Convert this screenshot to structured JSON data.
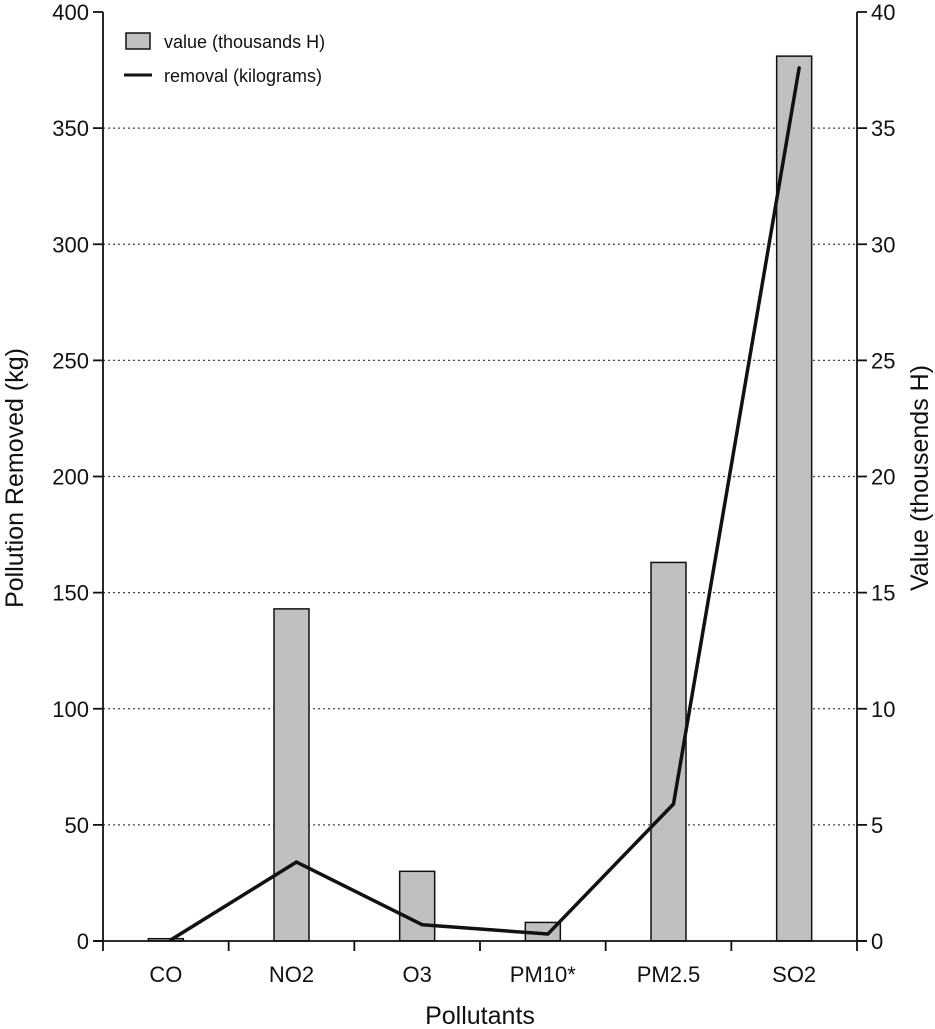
{
  "chart_data": {
    "type": "bar",
    "categories": [
      "CO",
      "NO2",
      "O3",
      "PM10*",
      "PM2.5",
      "SO2"
    ],
    "series": [
      {
        "name": "value (thousands H)",
        "type": "bar",
        "axis": "right",
        "values": [
          0.1,
          14.3,
          3.0,
          0.8,
          16.3,
          38.1
        ]
      },
      {
        "name": "removal (kilograms)",
        "type": "line",
        "axis": "left",
        "values": [
          0.5,
          34,
          7,
          3,
          59,
          376
        ]
      }
    ],
    "xlabel": "Pollutants",
    "ylabel": "Pollution Removed (kg)",
    "y2label": "Value (thousends H)",
    "ylim": [
      0,
      400
    ],
    "y2lim": [
      0,
      40
    ],
    "yticks": [
      "0",
      "50",
      "100",
      "150",
      "200",
      "250",
      "300",
      "350",
      "400"
    ],
    "y2ticks": [
      "0",
      "5",
      "10",
      "15",
      "20",
      "25",
      "30",
      "35",
      "40"
    ],
    "grid": "horizontal dotted",
    "legend_position": "top-left",
    "colors": {
      "bar_fill": "#c0c0c0",
      "bar_stroke": "#111111",
      "line": "#111111",
      "grid": "#444444"
    }
  }
}
